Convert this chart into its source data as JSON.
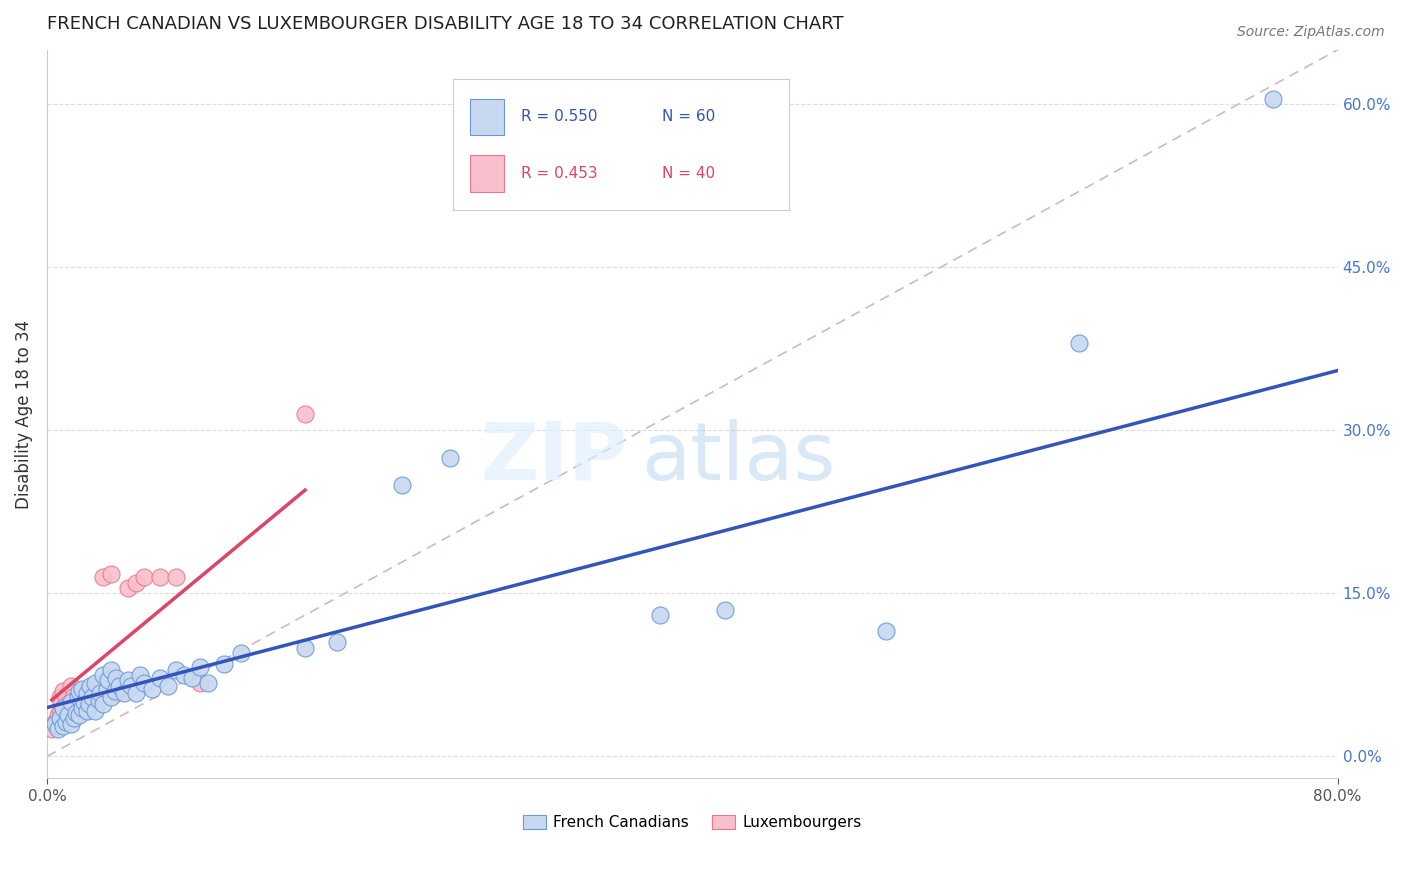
{
  "title": "FRENCH CANADIAN VS LUXEMBOURGER DISABILITY AGE 18 TO 34 CORRELATION CHART",
  "source": "Source: ZipAtlas.com",
  "ylabel": "Disability Age 18 to 34",
  "watermark": "ZIPatlas",
  "legend_blue_r": "R = 0.550",
  "legend_blue_n": "N = 60",
  "legend_pink_r": "R = 0.453",
  "legend_pink_n": "N = 40",
  "legend_blue_label": "French Canadians",
  "legend_pink_label": "Luxembourgers",
  "blue_fill": "#C8D8F0",
  "blue_edge": "#6699DD",
  "pink_fill": "#F8C0CC",
  "pink_edge": "#EE7788",
  "blue_line_color": "#3355BB",
  "pink_line_color": "#DD4466",
  "right_tick_color": "#4477CC",
  "xmin": 0.0,
  "xmax": 0.8,
  "ymin": -0.02,
  "ymax": 0.65,
  "right_yticks": [
    0.0,
    0.15,
    0.3,
    0.45,
    0.6
  ],
  "right_yticklabels": [
    "0.0%",
    "15.0%",
    "30.0%",
    "45.0%",
    "60.0%"
  ],
  "blue_scatter_x": [
    0.005,
    0.007,
    0.008,
    0.01,
    0.01,
    0.012,
    0.013,
    0.015,
    0.015,
    0.017,
    0.018,
    0.019,
    0.02,
    0.02,
    0.022,
    0.022,
    0.023,
    0.025,
    0.025,
    0.026,
    0.027,
    0.028,
    0.03,
    0.03,
    0.032,
    0.033,
    0.035,
    0.035,
    0.037,
    0.038,
    0.04,
    0.04,
    0.042,
    0.043,
    0.045,
    0.048,
    0.05,
    0.052,
    0.055,
    0.058,
    0.06,
    0.065,
    0.07,
    0.075,
    0.08,
    0.085,
    0.09,
    0.095,
    0.1,
    0.11,
    0.12,
    0.16,
    0.18,
    0.22,
    0.25,
    0.38,
    0.42,
    0.52,
    0.64,
    0.76
  ],
  "blue_scatter_y": [
    0.03,
    0.025,
    0.035,
    0.028,
    0.045,
    0.032,
    0.038,
    0.03,
    0.05,
    0.035,
    0.04,
    0.055,
    0.038,
    0.06,
    0.045,
    0.062,
    0.05,
    0.042,
    0.058,
    0.048,
    0.065,
    0.055,
    0.042,
    0.068,
    0.052,
    0.058,
    0.048,
    0.075,
    0.062,
    0.07,
    0.055,
    0.08,
    0.06,
    0.072,
    0.065,
    0.058,
    0.07,
    0.065,
    0.058,
    0.075,
    0.068,
    0.062,
    0.072,
    0.065,
    0.08,
    0.075,
    0.072,
    0.082,
    0.068,
    0.085,
    0.095,
    0.1,
    0.105,
    0.25,
    0.275,
    0.13,
    0.135,
    0.115,
    0.38,
    0.605
  ],
  "pink_scatter_x": [
    0.003,
    0.005,
    0.006,
    0.007,
    0.008,
    0.008,
    0.009,
    0.01,
    0.01,
    0.011,
    0.012,
    0.012,
    0.013,
    0.014,
    0.015,
    0.015,
    0.016,
    0.017,
    0.018,
    0.019,
    0.02,
    0.021,
    0.022,
    0.024,
    0.025,
    0.026,
    0.028,
    0.03,
    0.032,
    0.035,
    0.038,
    0.04,
    0.043,
    0.05,
    0.055,
    0.06,
    0.07,
    0.08,
    0.095,
    0.16
  ],
  "pink_scatter_y": [
    0.025,
    0.032,
    0.028,
    0.038,
    0.042,
    0.055,
    0.048,
    0.035,
    0.06,
    0.042,
    0.035,
    0.055,
    0.048,
    0.038,
    0.042,
    0.065,
    0.055,
    0.048,
    0.038,
    0.052,
    0.045,
    0.06,
    0.055,
    0.042,
    0.058,
    0.048,
    0.062,
    0.055,
    0.065,
    0.165,
    0.06,
    0.168,
    0.058,
    0.155,
    0.16,
    0.165,
    0.165,
    0.165,
    0.068,
    0.315
  ],
  "blue_regline_x0": 0.0,
  "blue_regline_y0": 0.045,
  "blue_regline_x1": 0.8,
  "blue_regline_y1": 0.355,
  "pink_regline_x0": 0.003,
  "pink_regline_y0": 0.052,
  "pink_regline_x1": 0.16,
  "pink_regline_y1": 0.245,
  "refline_x0": 0.0,
  "refline_y0": 0.0,
  "refline_x1": 0.8,
  "refline_y1": 0.65
}
